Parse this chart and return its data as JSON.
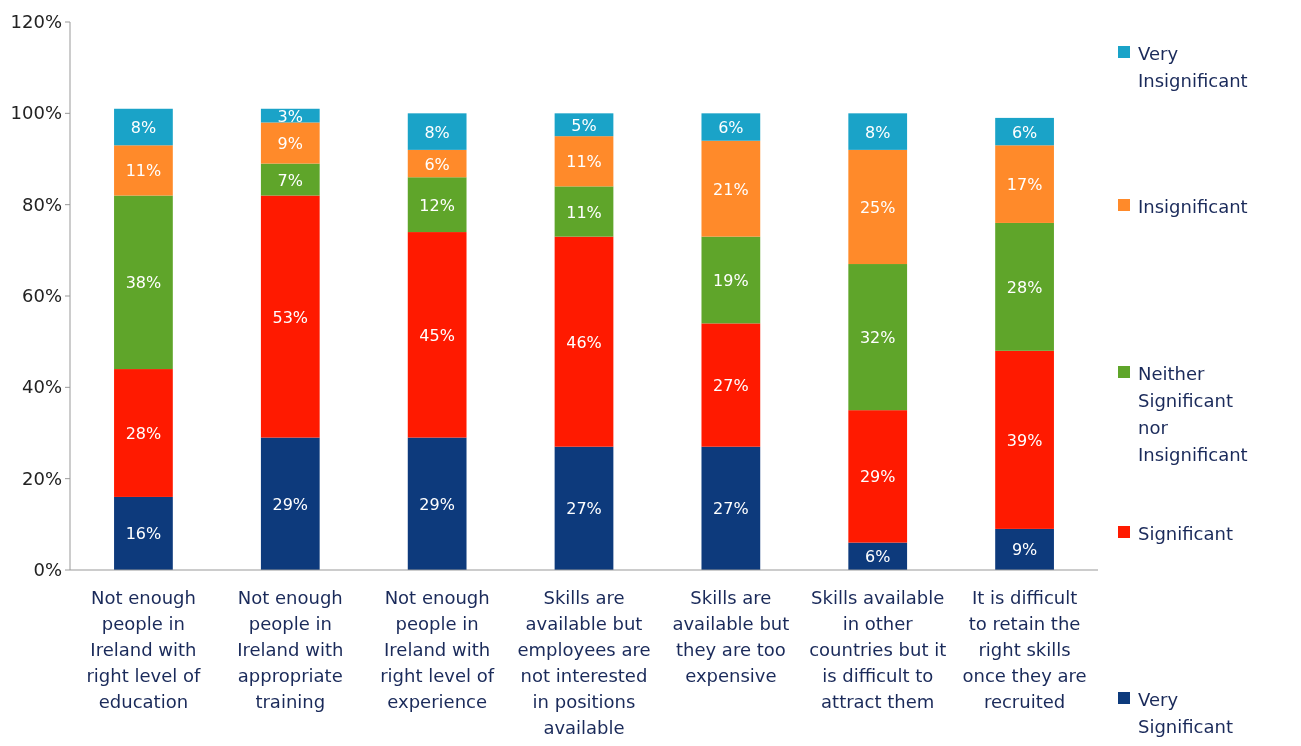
{
  "chart_data": {
    "type": "bar",
    "stacked": true,
    "legend": "right",
    "grid": false,
    "categories": [
      "Not enough people in Ireland with right level of education",
      "Not enough people in Ireland with appropriate training",
      "Not enough people in Ireland with right level of experience",
      "Skills are available but employees are not interested in positions available",
      "Skills are available but they are too expensive",
      "Skills available in other countries but it is difficult to attract them",
      "It is difficult to retain the right skills once they are recruited"
    ],
    "series": [
      {
        "name": "Very Significant",
        "color": "#0d3a7c",
        "values": [
          16,
          29,
          29,
          27,
          27,
          6,
          9
        ],
        "value_labels": [
          "16%",
          "29%",
          "29%",
          "27%",
          "27%",
          "6%",
          "9%"
        ]
      },
      {
        "name": "Significant",
        "color": "#ff1a00",
        "values": [
          28,
          53,
          45,
          46,
          27,
          29,
          39
        ],
        "value_labels": [
          "28%",
          "53%",
          "45%",
          "46%",
          "27%",
          "29%",
          "39%"
        ]
      },
      {
        "name": "Neither Significant nor Insignificant",
        "color": "#5fa52a",
        "values": [
          38,
          7,
          12,
          11,
          19,
          32,
          28
        ],
        "value_labels": [
          "38%",
          "7%",
          "12%",
          "11%",
          "19%",
          "32%",
          "28%"
        ]
      },
      {
        "name": "Insignificant",
        "color": "#ff8a2a",
        "values": [
          11,
          9,
          6,
          11,
          21,
          25,
          17
        ],
        "value_labels": [
          "11%",
          "9%",
          "6%",
          "11%",
          "21%",
          "25%",
          "17%"
        ]
      },
      {
        "name": "Very Insignificant",
        "color": "#1aa3c8",
        "values": [
          8,
          3,
          8,
          5,
          6,
          8,
          6
        ],
        "value_labels": [
          "8%",
          "3%",
          "8%",
          "5%",
          "6%",
          "8%",
          "6%"
        ]
      }
    ],
    "ylim": [
      0,
      120
    ],
    "yticks": [
      {
        "value": 0,
        "label": "0%"
      },
      {
        "value": 20,
        "label": "20%"
      },
      {
        "value": 40,
        "label": "40%"
      },
      {
        "value": 60,
        "label": "60%"
      },
      {
        "value": 80,
        "label": "80%"
      },
      {
        "value": 100,
        "label": "100%"
      },
      {
        "value": 120,
        "label": "120%"
      }
    ]
  }
}
